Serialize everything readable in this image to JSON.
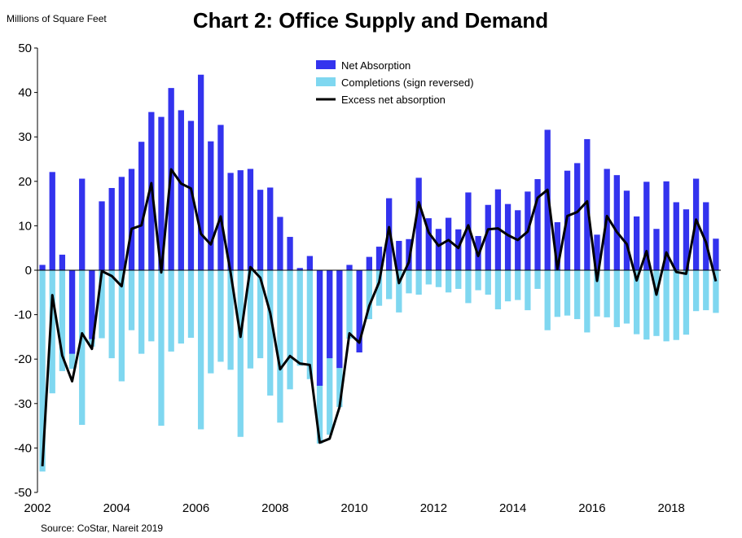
{
  "chart_data": {
    "type": "bar",
    "title": "Chart 2: Office Supply and Demand",
    "ylabel": "Millions of Square Feet",
    "source": "Source: CoStar, Nareit 2019",
    "ylim": [
      -50,
      50
    ],
    "yticks": [
      50,
      40,
      30,
      20,
      10,
      0,
      -10,
      -20,
      -30,
      -40,
      -50
    ],
    "xlim": [
      2002,
      2019.25
    ],
    "xticks": [
      2002,
      2004,
      2006,
      2008,
      2010,
      2012,
      2014,
      2016,
      2018
    ],
    "x": [
      2002.0,
      2002.25,
      2002.5,
      2002.75,
      2003.0,
      2003.25,
      2003.5,
      2003.75,
      2004.0,
      2004.25,
      2004.5,
      2004.75,
      2005.0,
      2005.25,
      2005.5,
      2005.75,
      2006.0,
      2006.25,
      2006.5,
      2006.75,
      2007.0,
      2007.25,
      2007.5,
      2007.75,
      2008.0,
      2008.25,
      2008.5,
      2008.75,
      2009.0,
      2009.25,
      2009.5,
      2009.75,
      2010.0,
      2010.25,
      2010.5,
      2010.75,
      2011.0,
      2011.25,
      2011.5,
      2011.75,
      2012.0,
      2012.25,
      2012.5,
      2012.75,
      2013.0,
      2013.25,
      2013.5,
      2013.75,
      2014.0,
      2014.25,
      2014.5,
      2014.75,
      2015.0,
      2015.25,
      2015.5,
      2015.75,
      2016.0,
      2016.25,
      2016.5,
      2016.75,
      2017.0,
      2017.25,
      2017.5,
      2017.75,
      2018.0,
      2018.25,
      2018.5,
      2018.75,
      2019.0
    ],
    "series": [
      {
        "name": "Net Absorption",
        "kind": "bar",
        "color": "#3333ee",
        "values": [
          1.2,
          22.1,
          3.5,
          -18.8,
          20.6,
          -15.5,
          15.5,
          18.5,
          21.0,
          22.8,
          28.9,
          35.6,
          34.5,
          41.0,
          36.0,
          33.6,
          44.0,
          29.0,
          32.7,
          21.9,
          22.5,
          22.8,
          18.1,
          18.6,
          12.0,
          7.5,
          0.5,
          3.2,
          -26.0,
          -19.8,
          -22.0,
          1.2,
          -18.5,
          3.0,
          5.3,
          16.2,
          6.6,
          7.0,
          20.8,
          11.7,
          9.3,
          11.8,
          9.2,
          17.5,
          7.7,
          14.7,
          18.2,
          14.9,
          13.5,
          17.7,
          20.5,
          31.6,
          10.8,
          22.4,
          24.1,
          29.5,
          8.0,
          22.8,
          21.4,
          17.9,
          12.1,
          19.9,
          9.3,
          20.0,
          15.3,
          13.7,
          20.6,
          15.3,
          7.1
        ]
      },
      {
        "name": "Completions (sign reversed)",
        "kind": "bar",
        "color": "#7fd7f0",
        "values": [
          -45.3,
          -27.7,
          -22.7,
          -22.2,
          -34.8,
          -17.2,
          -15.3,
          -19.8,
          -25.0,
          -13.5,
          -18.8,
          -16.0,
          -35.0,
          -18.3,
          -16.5,
          -15.2,
          -35.8,
          -23.2,
          -20.6,
          -22.4,
          -37.5,
          -22.1,
          -19.8,
          -28.2,
          -34.3,
          -26.8,
          -21.5,
          -24.5,
          -39.0,
          -37.0,
          -30.8,
          -15.4,
          -14.5,
          -11.0,
          -8.0,
          -6.5,
          -9.5,
          -5.2,
          -5.5,
          -3.2,
          -3.8,
          -5.0,
          -4.2,
          -7.4,
          -4.5,
          -5.5,
          -8.8,
          -7.0,
          -6.7,
          -9.0,
          -4.2,
          -13.5,
          -10.5,
          -10.2,
          -11.0,
          -14.0,
          -10.4,
          -10.6,
          -12.8,
          -12.0,
          -14.4,
          -15.6,
          -14.8,
          -16.0,
          -15.7,
          -14.5,
          -9.2,
          -9.0,
          -9.6
        ]
      },
      {
        "name": "Excess net absorption",
        "kind": "line",
        "color": "#000000",
        "values": [
          -44.1,
          -5.6,
          -19.2,
          -25.0,
          -14.2,
          -17.7,
          -0.2,
          -1.3,
          -3.6,
          9.3,
          10.1,
          19.6,
          -0.5,
          22.7,
          19.5,
          18.4,
          8.2,
          5.8,
          12.1,
          -0.5,
          -15.0,
          0.7,
          -1.7,
          -9.6,
          -22.3,
          -19.3,
          -21.0,
          -21.3,
          -38.8,
          -37.9,
          -30.8,
          -14.2,
          -16.3,
          -8.0,
          -2.7,
          9.7,
          -2.9,
          1.8,
          15.3,
          8.5,
          5.5,
          6.8,
          5.0,
          10.1,
          3.2,
          9.2,
          9.4,
          7.9,
          6.8,
          8.7,
          16.3,
          18.1,
          0.3,
          12.2,
          13.1,
          15.5,
          -2.4,
          12.2,
          8.6,
          5.9,
          -2.3,
          4.3,
          -5.5,
          4.0,
          -0.4,
          -0.8,
          11.4,
          6.3,
          -2.5
        ]
      }
    ],
    "legend": "top-center",
    "grid": false
  }
}
